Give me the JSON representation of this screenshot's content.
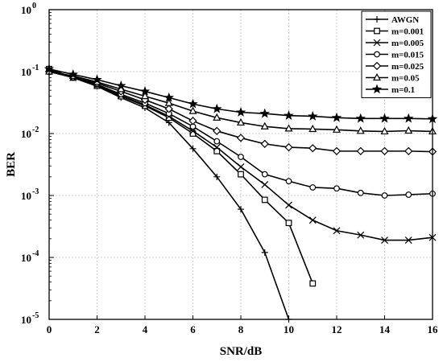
{
  "chart_data": {
    "type": "line",
    "xlabel": "SNR/dB",
    "ylabel": "BER",
    "xlim": [
      0,
      16
    ],
    "ylim": [
      1e-05,
      1
    ],
    "yscale": "log",
    "grid": true,
    "legend_position": "top-right",
    "x_ticks": [
      0,
      2,
      4,
      6,
      8,
      10,
      12,
      14,
      16
    ],
    "x_tick_labels": [
      "0",
      "2",
      "4",
      "6",
      "8",
      "10",
      "12",
      "14",
      "16"
    ],
    "y_ticks": [
      1,
      0.1,
      0.01,
      0.001,
      0.0001,
      1e-05
    ],
    "y_tick_labels": [
      {
        "base": "10",
        "exp": "0"
      },
      {
        "base": "10",
        "exp": "-1"
      },
      {
        "base": "10",
        "exp": "-2"
      },
      {
        "base": "10",
        "exp": "-3"
      },
      {
        "base": "10",
        "exp": "-4"
      },
      {
        "base": "10",
        "exp": "-5"
      }
    ],
    "series": [
      {
        "name": "AWGN",
        "marker": "plus",
        "x": [
          0,
          1,
          2,
          3,
          4,
          5,
          6,
          7,
          8,
          9,
          10
        ],
        "y": [
          0.11,
          0.08,
          0.058,
          0.038,
          0.026,
          0.015,
          0.0057,
          0.002,
          0.0006,
          0.00012,
          1e-05
        ]
      },
      {
        "name": "m=0.001",
        "marker": "square",
        "x": [
          0,
          1,
          2,
          3,
          4,
          5,
          6,
          7,
          8,
          9,
          10,
          11
        ],
        "y": [
          0.11,
          0.08,
          0.059,
          0.04,
          0.028,
          0.018,
          0.01,
          0.0052,
          0.0022,
          0.00085,
          0.00036,
          3.8e-05
        ]
      },
      {
        "name": "m=0.005",
        "marker": "x",
        "x": [
          0,
          1,
          2,
          3,
          4,
          5,
          6,
          7,
          8,
          9,
          10,
          11,
          12,
          13,
          14,
          15,
          16
        ],
        "y": [
          0.105,
          0.08,
          0.06,
          0.041,
          0.029,
          0.019,
          0.011,
          0.006,
          0.0029,
          0.0015,
          0.0007,
          0.0004,
          0.00027,
          0.00023,
          0.00019,
          0.00019,
          0.00021
        ]
      },
      {
        "name": "m=0.015",
        "marker": "circle",
        "x": [
          0,
          1,
          2,
          3,
          4,
          5,
          6,
          7,
          8,
          9,
          10,
          11,
          12,
          13,
          14,
          15,
          16
        ],
        "y": [
          0.1,
          0.08,
          0.062,
          0.043,
          0.031,
          0.021,
          0.013,
          0.0075,
          0.0042,
          0.0022,
          0.0017,
          0.00135,
          0.0013,
          0.0011,
          0.001,
          0.00103,
          0.00107
        ]
      },
      {
        "name": "m=0.025",
        "marker": "diamond",
        "x": [
          0,
          1,
          2,
          3,
          4,
          5,
          6,
          7,
          8,
          9,
          10,
          11,
          12,
          13,
          14,
          15,
          16
        ],
        "y": [
          0.1,
          0.082,
          0.065,
          0.048,
          0.035,
          0.025,
          0.016,
          0.011,
          0.0085,
          0.0068,
          0.006,
          0.0058,
          0.0052,
          0.0052,
          0.0052,
          0.0052,
          0.0051
        ]
      },
      {
        "name": "m=0.05",
        "marker": "triangle",
        "x": [
          0,
          1,
          2,
          3,
          4,
          5,
          6,
          7,
          8,
          9,
          10,
          11,
          12,
          13,
          14,
          15,
          16
        ],
        "y": [
          0.1,
          0.085,
          0.068,
          0.052,
          0.04,
          0.031,
          0.023,
          0.018,
          0.015,
          0.013,
          0.012,
          0.0118,
          0.0115,
          0.011,
          0.0108,
          0.0111,
          0.0108
        ]
      },
      {
        "name": "m=0.1",
        "marker": "star",
        "x": [
          0,
          1,
          2,
          3,
          4,
          5,
          6,
          7,
          8,
          9,
          10,
          11,
          12,
          13,
          14,
          15,
          16
        ],
        "y": [
          0.11,
          0.09,
          0.074,
          0.059,
          0.048,
          0.038,
          0.03,
          0.025,
          0.022,
          0.021,
          0.0195,
          0.019,
          0.018,
          0.0175,
          0.0175,
          0.0175,
          0.0172
        ]
      }
    ]
  }
}
